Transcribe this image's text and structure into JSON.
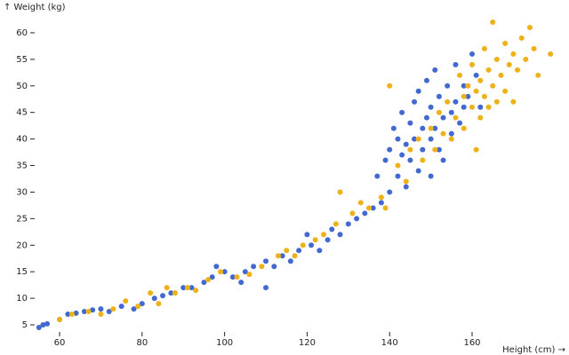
{
  "chart_data": {
    "type": "scatter",
    "x_label": "Height (cm) →",
    "y_label": "↑ Weight (kg)",
    "xlim": [
      54,
      180
    ],
    "ylim": [
      4,
      63
    ],
    "xticks": [
      60,
      80,
      100,
      120,
      140,
      160
    ],
    "yticks": [
      5,
      10,
      15,
      20,
      25,
      30,
      35,
      40,
      45,
      50,
      55,
      60
    ],
    "series": [
      {
        "color": "#4269d0",
        "x": [
          55,
          56,
          57,
          60,
          62,
          64,
          66,
          68,
          70,
          72,
          75,
          78,
          80,
          83,
          85,
          87,
          90,
          92,
          95,
          97,
          98,
          100,
          102,
          104,
          105,
          107,
          110,
          110,
          112,
          114,
          116,
          118,
          120,
          121,
          123,
          125,
          126,
          128,
          130,
          132,
          134,
          136,
          137,
          138,
          139,
          140,
          140,
          141,
          142,
          142,
          143,
          143,
          144,
          144,
          145,
          145,
          146,
          146,
          147,
          147,
          148,
          148,
          149,
          149,
          150,
          150,
          150,
          151,
          151,
          152,
          152,
          153,
          153,
          154,
          155,
          155,
          156,
          156,
          157,
          158,
          158,
          159,
          160,
          161,
          162
        ],
        "values": [
          4.5,
          5,
          5.2,
          6,
          7,
          7.2,
          7.5,
          7.8,
          8,
          7.5,
          8.5,
          8,
          9,
          10,
          10.5,
          11,
          12,
          12,
          13,
          14,
          16,
          15,
          14,
          13,
          15,
          16,
          12,
          17,
          16,
          18,
          17,
          19,
          22,
          20,
          19,
          21,
          23,
          22,
          24,
          25,
          26,
          27,
          33,
          28,
          36,
          38,
          30,
          42,
          40,
          33,
          37,
          45,
          39,
          31,
          43,
          36,
          47,
          40,
          34,
          49,
          42,
          38,
          44,
          51,
          40,
          46,
          33,
          53,
          42,
          48,
          38,
          44,
          36,
          50,
          45,
          41,
          54,
          47,
          43,
          50,
          46,
          48,
          56,
          52,
          46
        ]
      },
      {
        "color": "#efb118",
        "x": [
          60,
          63,
          67,
          70,
          73,
          76,
          79,
          82,
          84,
          86,
          88,
          91,
          93,
          96,
          99,
          103,
          106,
          109,
          113,
          115,
          117,
          119,
          122,
          124,
          127,
          128,
          131,
          133,
          135,
          138,
          139,
          140,
          142,
          144,
          145,
          147,
          148,
          150,
          151,
          152,
          153,
          154,
          155,
          156,
          157,
          158,
          158,
          159,
          160,
          160,
          161,
          161,
          162,
          162,
          163,
          163,
          164,
          164,
          165,
          165,
          166,
          166,
          167,
          168,
          168,
          169,
          170,
          170,
          171,
          172,
          173,
          174,
          175,
          176,
          179
        ],
        "values": [
          6,
          7,
          7.5,
          7,
          8,
          9.5,
          8.5,
          11,
          9,
          12,
          11,
          12,
          11.5,
          13.5,
          15,
          14,
          14.5,
          16,
          18,
          19,
          18,
          20,
          21,
          22,
          24,
          30,
          26,
          28,
          27,
          29,
          27,
          50,
          35,
          32,
          38,
          40,
          36,
          42,
          38,
          45,
          41,
          47,
          40,
          44,
          52,
          48,
          42,
          50,
          46,
          54,
          49,
          38,
          51,
          44,
          48,
          57,
          53,
          46,
          50,
          62,
          55,
          47,
          52,
          58,
          49,
          54,
          56,
          47,
          53,
          59,
          55,
          61,
          57,
          52,
          56
        ]
      }
    ]
  }
}
